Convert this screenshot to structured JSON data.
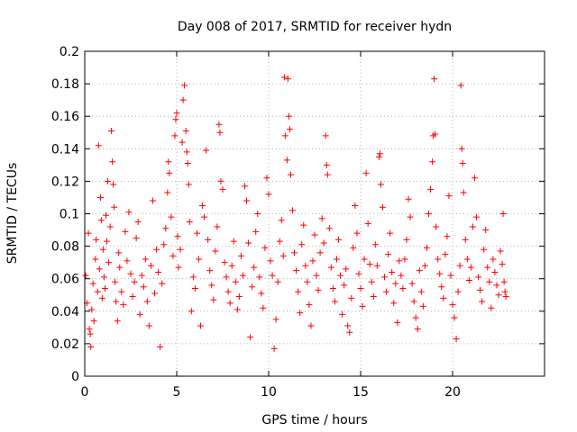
{
  "chart_data": {
    "type": "scatter",
    "title": "Day 008 of 2017, SRMTID for receiver hydn",
    "xlabel": "GPS time / hours",
    "ylabel": "SRMTID / TECUs",
    "xlim": [
      0,
      25
    ],
    "ylim": [
      0,
      0.2
    ],
    "xticks": [
      0,
      5,
      10,
      15,
      20
    ],
    "xtick_labels": [
      "0",
      "5",
      "10",
      "15",
      "20"
    ],
    "yticks": [
      0,
      0.02,
      0.04,
      0.06,
      0.08,
      0.1,
      0.12,
      0.14,
      0.16,
      0.18,
      0.2
    ],
    "ytick_labels": [
      "0",
      "0.02",
      "0.04",
      "0.06",
      "0.08",
      "0.1",
      "0.12",
      "0.14",
      "0.16",
      "0.18",
      "0.2"
    ],
    "grid": true,
    "marker": "plus",
    "color": "#ff0000",
    "series": [
      {
        "name": "SRMTID",
        "points": [
          [
            0.05,
            0.062
          ],
          [
            0.12,
            0.045
          ],
          [
            0.2,
            0.088
          ],
          [
            0.25,
            0.029
          ],
          [
            0.3,
            0.026
          ],
          [
            0.33,
            0.018
          ],
          [
            0.38,
            0.041
          ],
          [
            0.45,
            0.057
          ],
          [
            0.5,
            0.034
          ],
          [
            0.58,
            0.072
          ],
          [
            0.62,
            0.084
          ],
          [
            0.7,
            0.052
          ],
          [
            0.75,
            0.142
          ],
          [
            0.8,
            0.066
          ],
          [
            0.86,
            0.11
          ],
          [
            0.9,
            0.096
          ],
          [
            0.95,
            0.048
          ],
          [
            1.0,
            0.078
          ],
          [
            1.05,
            0.061
          ],
          [
            1.1,
            0.054
          ],
          [
            1.15,
            0.099
          ],
          [
            1.2,
            0.083
          ],
          [
            1.25,
            0.12
          ],
          [
            1.3,
            0.07
          ],
          [
            1.38,
            0.092
          ],
          [
            1.45,
            0.151
          ],
          [
            1.5,
            0.132
          ],
          [
            1.55,
            0.118
          ],
          [
            1.6,
            0.104
          ],
          [
            1.65,
            0.058
          ],
          [
            1.7,
            0.046
          ],
          [
            1.78,
            0.034
          ],
          [
            1.85,
            0.076
          ],
          [
            1.9,
            0.067
          ],
          [
            2.0,
            0.052
          ],
          [
            2.1,
            0.044
          ],
          [
            2.2,
            0.089
          ],
          [
            2.3,
            0.071
          ],
          [
            2.4,
            0.101
          ],
          [
            2.5,
            0.063
          ],
          [
            2.6,
            0.049
          ],
          [
            2.7,
            0.058
          ],
          [
            2.8,
            0.085
          ],
          [
            2.9,
            0.095
          ],
          [
            3.0,
            0.038
          ],
          [
            3.1,
            0.062
          ],
          [
            3.2,
            0.055
          ],
          [
            3.3,
            0.072
          ],
          [
            3.4,
            0.046
          ],
          [
            3.5,
            0.031
          ],
          [
            3.6,
            0.068
          ],
          [
            3.7,
            0.108
          ],
          [
            3.8,
            0.051
          ],
          [
            3.9,
            0.078
          ],
          [
            4.0,
            0.064
          ],
          [
            4.1,
            0.018
          ],
          [
            4.2,
            0.057
          ],
          [
            4.3,
            0.081
          ],
          [
            4.4,
            0.091
          ],
          [
            4.5,
            0.113
          ],
          [
            4.55,
            0.132
          ],
          [
            4.6,
            0.125
          ],
          [
            4.7,
            0.098
          ],
          [
            4.8,
            0.074
          ],
          [
            4.9,
            0.148
          ],
          [
            4.95,
            0.158
          ],
          [
            5.0,
            0.162
          ],
          [
            5.05,
            0.086
          ],
          [
            5.1,
            0.067
          ],
          [
            5.2,
            0.078
          ],
          [
            5.3,
            0.144
          ],
          [
            5.35,
            0.17
          ],
          [
            5.42,
            0.179
          ],
          [
            5.5,
            0.151
          ],
          [
            5.55,
            0.138
          ],
          [
            5.6,
            0.131
          ],
          [
            5.65,
            0.118
          ],
          [
            5.7,
            0.095
          ],
          [
            5.8,
            0.04
          ],
          [
            5.9,
            0.061
          ],
          [
            6.0,
            0.054
          ],
          [
            6.1,
            0.088
          ],
          [
            6.2,
            0.072
          ],
          [
            6.3,
            0.031
          ],
          [
            6.4,
            0.105
          ],
          [
            6.5,
            0.098
          ],
          [
            6.6,
            0.139
          ],
          [
            6.7,
            0.084
          ],
          [
            6.8,
            0.065
          ],
          [
            6.9,
            0.056
          ],
          [
            7.0,
            0.047
          ],
          [
            7.1,
            0.077
          ],
          [
            7.2,
            0.092
          ],
          [
            7.3,
            0.155
          ],
          [
            7.35,
            0.15
          ],
          [
            7.4,
            0.12
          ],
          [
            7.5,
            0.115
          ],
          [
            7.6,
            0.07
          ],
          [
            7.7,
            0.061
          ],
          [
            7.8,
            0.052
          ],
          [
            7.9,
            0.045
          ],
          [
            8.0,
            0.068
          ],
          [
            8.1,
            0.083
          ],
          [
            8.2,
            0.058
          ],
          [
            8.3,
            0.041
          ],
          [
            8.4,
            0.049
          ],
          [
            8.5,
            0.074
          ],
          [
            8.6,
            0.062
          ],
          [
            8.7,
            0.117
          ],
          [
            8.8,
            0.108
          ],
          [
            8.9,
            0.082
          ],
          [
            9.0,
            0.024
          ],
          [
            9.1,
            0.055
          ],
          [
            9.2,
            0.067
          ],
          [
            9.3,
            0.089
          ],
          [
            9.4,
            0.1
          ],
          [
            9.5,
            0.061
          ],
          [
            9.6,
            0.051
          ],
          [
            9.7,
            0.042
          ],
          [
            9.8,
            0.079
          ],
          [
            9.9,
            0.122
          ],
          [
            10.0,
            0.112
          ],
          [
            10.1,
            0.071
          ],
          [
            10.2,
            0.062
          ],
          [
            10.3,
            0.017
          ],
          [
            10.4,
            0.035
          ],
          [
            10.5,
            0.058
          ],
          [
            10.6,
            0.083
          ],
          [
            10.7,
            0.096
          ],
          [
            10.8,
            0.074
          ],
          [
            10.85,
            0.184
          ],
          [
            10.9,
            0.148
          ],
          [
            11.0,
            0.133
          ],
          [
            11.05,
            0.183
          ],
          [
            11.1,
            0.16
          ],
          [
            11.15,
            0.152
          ],
          [
            11.2,
            0.124
          ],
          [
            11.3,
            0.102
          ],
          [
            11.4,
            0.076
          ],
          [
            11.5,
            0.065
          ],
          [
            11.6,
            0.052
          ],
          [
            11.7,
            0.039
          ],
          [
            11.8,
            0.081
          ],
          [
            11.9,
            0.093
          ],
          [
            12.0,
            0.068
          ],
          [
            12.1,
            0.058
          ],
          [
            12.2,
            0.044
          ],
          [
            12.3,
            0.031
          ],
          [
            12.4,
            0.071
          ],
          [
            12.5,
            0.087
          ],
          [
            12.6,
            0.062
          ],
          [
            12.7,
            0.053
          ],
          [
            12.8,
            0.076
          ],
          [
            12.9,
            0.097
          ],
          [
            13.0,
            0.082
          ],
          [
            13.1,
            0.148
          ],
          [
            13.15,
            0.13
          ],
          [
            13.2,
            0.124
          ],
          [
            13.3,
            0.091
          ],
          [
            13.4,
            0.067
          ],
          [
            13.5,
            0.054
          ],
          [
            13.6,
            0.046
          ],
          [
            13.7,
            0.072
          ],
          [
            13.8,
            0.084
          ],
          [
            13.9,
            0.062
          ],
          [
            14.0,
            0.038
          ],
          [
            14.1,
            0.056
          ],
          [
            14.2,
            0.066
          ],
          [
            14.3,
            0.031
          ],
          [
            14.4,
            0.027
          ],
          [
            14.5,
            0.048
          ],
          [
            14.6,
            0.079
          ],
          [
            14.7,
            0.105
          ],
          [
            14.8,
            0.088
          ],
          [
            14.9,
            0.063
          ],
          [
            15.0,
            0.054
          ],
          [
            15.1,
            0.043
          ],
          [
            15.2,
            0.072
          ],
          [
            15.3,
            0.125
          ],
          [
            15.4,
            0.094
          ],
          [
            15.5,
            0.069
          ],
          [
            15.6,
            0.058
          ],
          [
            15.7,
            0.049
          ],
          [
            15.8,
            0.081
          ],
          [
            15.9,
            0.068
          ],
          [
            16.0,
            0.135
          ],
          [
            16.05,
            0.137
          ],
          [
            16.1,
            0.118
          ],
          [
            16.2,
            0.104
          ],
          [
            16.3,
            0.061
          ],
          [
            16.4,
            0.052
          ],
          [
            16.5,
            0.075
          ],
          [
            16.6,
            0.088
          ],
          [
            16.7,
            0.064
          ],
          [
            16.8,
            0.045
          ],
          [
            16.9,
            0.057
          ],
          [
            17.0,
            0.033
          ],
          [
            17.1,
            0.071
          ],
          [
            17.2,
            0.062
          ],
          [
            17.3,
            0.054
          ],
          [
            17.4,
            0.072
          ],
          [
            17.5,
            0.084
          ],
          [
            17.6,
            0.109
          ],
          [
            17.7,
            0.098
          ],
          [
            17.8,
            0.057
          ],
          [
            17.9,
            0.046
          ],
          [
            18.0,
            0.036
          ],
          [
            18.1,
            0.029
          ],
          [
            18.2,
            0.065
          ],
          [
            18.3,
            0.052
          ],
          [
            18.4,
            0.043
          ],
          [
            18.5,
            0.068
          ],
          [
            18.6,
            0.079
          ],
          [
            18.7,
            0.1
          ],
          [
            18.8,
            0.115
          ],
          [
            18.9,
            0.132
          ],
          [
            18.95,
            0.148
          ],
          [
            19.0,
            0.183
          ],
          [
            19.05,
            0.149
          ],
          [
            19.1,
            0.092
          ],
          [
            19.2,
            0.072
          ],
          [
            19.3,
            0.063
          ],
          [
            19.4,
            0.055
          ],
          [
            19.5,
            0.048
          ],
          [
            19.6,
            0.075
          ],
          [
            19.7,
            0.086
          ],
          [
            19.8,
            0.111
          ],
          [
            19.9,
            0.062
          ],
          [
            20.0,
            0.044
          ],
          [
            20.1,
            0.036
          ],
          [
            20.2,
            0.023
          ],
          [
            20.3,
            0.052
          ],
          [
            20.4,
            0.068
          ],
          [
            20.45,
            0.179
          ],
          [
            20.5,
            0.14
          ],
          [
            20.55,
            0.131
          ],
          [
            20.6,
            0.113
          ],
          [
            20.7,
            0.084
          ],
          [
            20.8,
            0.072
          ],
          [
            20.9,
            0.059
          ],
          [
            21.0,
            0.067
          ],
          [
            21.1,
            0.092
          ],
          [
            21.2,
            0.122
          ],
          [
            21.3,
            0.098
          ],
          [
            21.4,
            0.061
          ],
          [
            21.5,
            0.053
          ],
          [
            21.6,
            0.046
          ],
          [
            21.7,
            0.078
          ],
          [
            21.8,
            0.09
          ],
          [
            21.9,
            0.067
          ],
          [
            22.0,
            0.058
          ],
          [
            22.1,
            0.042
          ],
          [
            22.2,
            0.072
          ],
          [
            22.3,
            0.064
          ],
          [
            22.4,
            0.056
          ],
          [
            22.5,
            0.05
          ],
          [
            22.6,
            0.077
          ],
          [
            22.7,
            0.069
          ],
          [
            22.75,
            0.1
          ],
          [
            22.8,
            0.058
          ],
          [
            22.85,
            0.052
          ],
          [
            22.9,
            0.049
          ]
        ]
      }
    ]
  }
}
